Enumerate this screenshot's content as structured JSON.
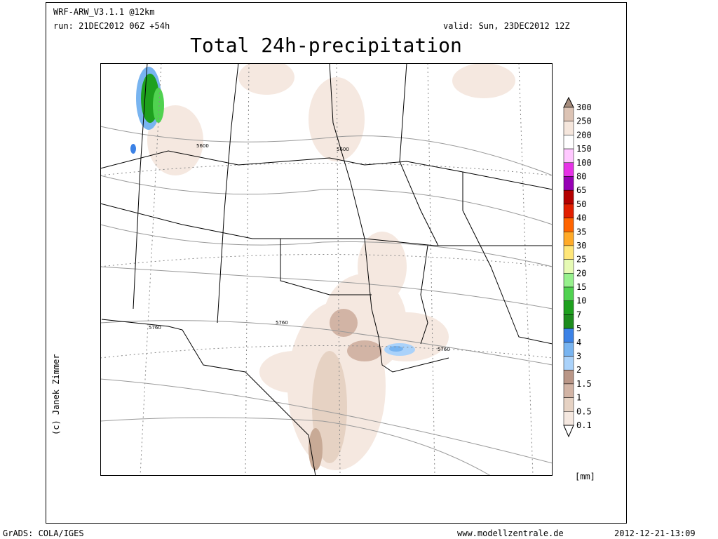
{
  "header": {
    "model": "WRF-ARW_V3.1.1 @12km",
    "run": "run: 21DEC2012 06Z +54h",
    "valid": "valid: Sun, 23DEC2012 12Z",
    "title": "Total 24h-precipitation"
  },
  "map": {
    "contour_labels": [
      "5600",
      "5600",
      "5760",
      "5760",
      "5760"
    ]
  },
  "colorbar": {
    "unit": "[mm]",
    "levels": [
      "300",
      "250",
      "200",
      "150",
      "100",
      "80",
      "65",
      "50",
      "40",
      "35",
      "30",
      "25",
      "20",
      "15",
      "10",
      "7",
      "5",
      "4",
      "3",
      "2",
      "1.5",
      "1",
      "0.5",
      "0.1"
    ],
    "colors": [
      "#a58c7d",
      "#dcc3b4",
      "#f5e6dc",
      "#ffffff",
      "#ffc8ff",
      "#e632e6",
      "#9600b4",
      "#b40000",
      "#e11e00",
      "#ff6400",
      "#ffaa28",
      "#ffe678",
      "#e6fab4",
      "#96f08c",
      "#50d250",
      "#1ea01e",
      "#1e8c1e",
      "#3c82e6",
      "#78b4f0",
      "#aad2fa",
      "#b99687",
      "#d2b4a5",
      "#e6d2c3",
      "#f5e8e0",
      "#ffffff"
    ]
  },
  "credit": "(c) Janek Zimmer",
  "footer": {
    "software": "GrADS: COLA/IGES",
    "website": "www.modellzentrale.de",
    "timestamp": "2012-12-21-13:09"
  }
}
